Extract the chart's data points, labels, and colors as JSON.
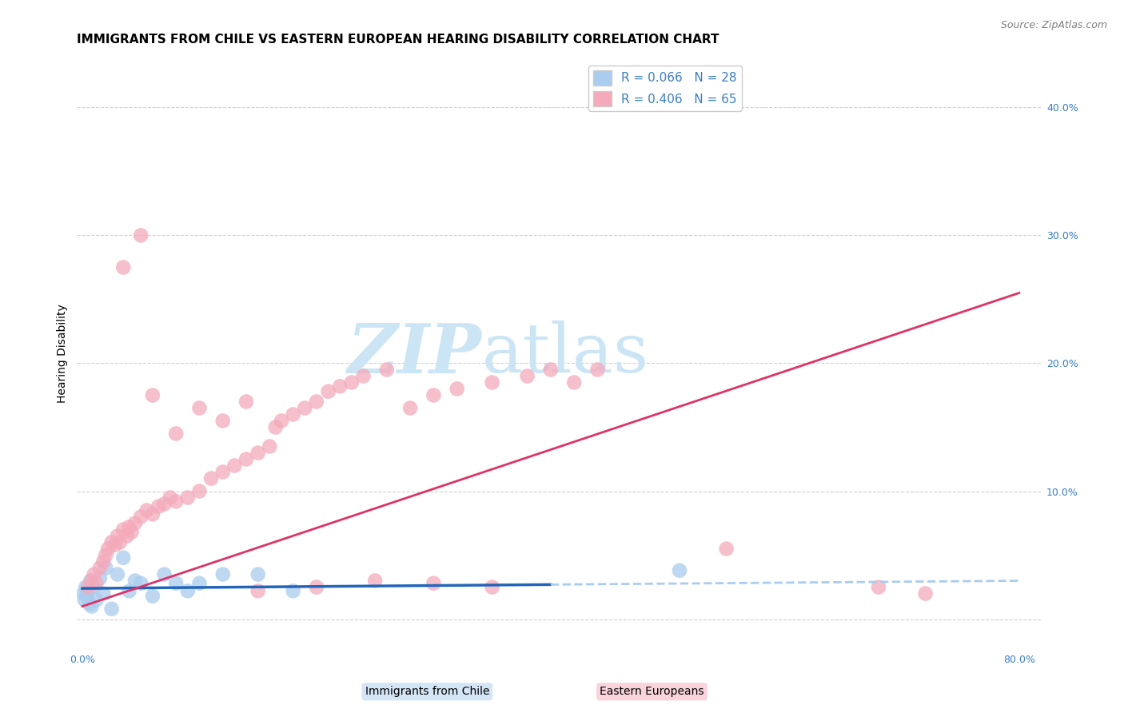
{
  "title": "IMMIGRANTS FROM CHILE VS EASTERN EUROPEAN HEARING DISABILITY CORRELATION CHART",
  "source": "Source: ZipAtlas.com",
  "ylabel": "Hearing Disability",
  "xlim": [
    -0.005,
    0.82
  ],
  "ylim": [
    -0.025,
    0.44
  ],
  "legend_entries": [
    {
      "label": "R = 0.066   N = 28",
      "color": "#aaccee"
    },
    {
      "label": "R = 0.406   N = 65",
      "color": "#f4aabb"
    }
  ],
  "watermark_zip": "ZIP",
  "watermark_atlas": "atlas",
  "watermark_color": "#cce5f5",
  "chile_scatter_x": [
    0.001,
    0.002,
    0.003,
    0.004,
    0.005,
    0.006,
    0.007,
    0.008,
    0.01,
    0.012,
    0.015,
    0.018,
    0.02,
    0.025,
    0.03,
    0.035,
    0.04,
    0.045,
    0.05,
    0.06,
    0.07,
    0.08,
    0.09,
    0.1,
    0.12,
    0.15,
    0.18,
    0.51
  ],
  "chile_scatter_y": [
    0.02,
    0.015,
    0.025,
    0.018,
    0.022,
    0.012,
    0.03,
    0.01,
    0.025,
    0.015,
    0.032,
    0.02,
    0.04,
    0.008,
    0.035,
    0.048,
    0.022,
    0.03,
    0.028,
    0.018,
    0.035,
    0.028,
    0.022,
    0.028,
    0.035,
    0.035,
    0.022,
    0.038
  ],
  "eastern_scatter_x": [
    0.005,
    0.008,
    0.01,
    0.012,
    0.015,
    0.018,
    0.02,
    0.022,
    0.025,
    0.028,
    0.03,
    0.032,
    0.035,
    0.038,
    0.04,
    0.042,
    0.045,
    0.05,
    0.055,
    0.06,
    0.065,
    0.07,
    0.075,
    0.08,
    0.09,
    0.1,
    0.11,
    0.12,
    0.13,
    0.14,
    0.15,
    0.16,
    0.165,
    0.17,
    0.18,
    0.19,
    0.2,
    0.21,
    0.22,
    0.23,
    0.24,
    0.26,
    0.28,
    0.3,
    0.32,
    0.35,
    0.38,
    0.4,
    0.42,
    0.44,
    0.15,
    0.2,
    0.25,
    0.3,
    0.35,
    0.06,
    0.08,
    0.1,
    0.12,
    0.14,
    0.55,
    0.68,
    0.72,
    0.05,
    0.035
  ],
  "eastern_scatter_y": [
    0.025,
    0.03,
    0.035,
    0.028,
    0.04,
    0.045,
    0.05,
    0.055,
    0.06,
    0.058,
    0.065,
    0.06,
    0.07,
    0.065,
    0.072,
    0.068,
    0.075,
    0.08,
    0.085,
    0.082,
    0.088,
    0.09,
    0.095,
    0.092,
    0.095,
    0.1,
    0.11,
    0.115,
    0.12,
    0.125,
    0.13,
    0.135,
    0.15,
    0.155,
    0.16,
    0.165,
    0.17,
    0.178,
    0.182,
    0.185,
    0.19,
    0.195,
    0.165,
    0.175,
    0.18,
    0.185,
    0.19,
    0.195,
    0.185,
    0.195,
    0.022,
    0.025,
    0.03,
    0.028,
    0.025,
    0.175,
    0.145,
    0.165,
    0.155,
    0.17,
    0.055,
    0.025,
    0.02,
    0.3,
    0.275
  ],
  "chile_line_x0": 0.0,
  "chile_line_x1": 0.8,
  "chile_line_y0": 0.024,
  "chile_line_y1": 0.03,
  "chile_line_dashed_x0": 0.4,
  "chile_line_dashed_x1": 0.8,
  "eastern_line_x0": 0.0,
  "eastern_line_x1": 0.8,
  "eastern_line_y0": 0.01,
  "eastern_line_y1": 0.255,
  "scatter_size": 180,
  "chile_scatter_color": "#aaccee",
  "eastern_scatter_color": "#f4aabb",
  "chile_line_color": "#2266bb",
  "chile_line_dashed_color": "#aaccee",
  "eastern_line_color": "#dd3366",
  "background_color": "#ffffff",
  "grid_color": "#cccccc",
  "title_fontsize": 11,
  "axis_label_fontsize": 10,
  "tick_fontsize": 9,
  "legend_fontsize": 11
}
